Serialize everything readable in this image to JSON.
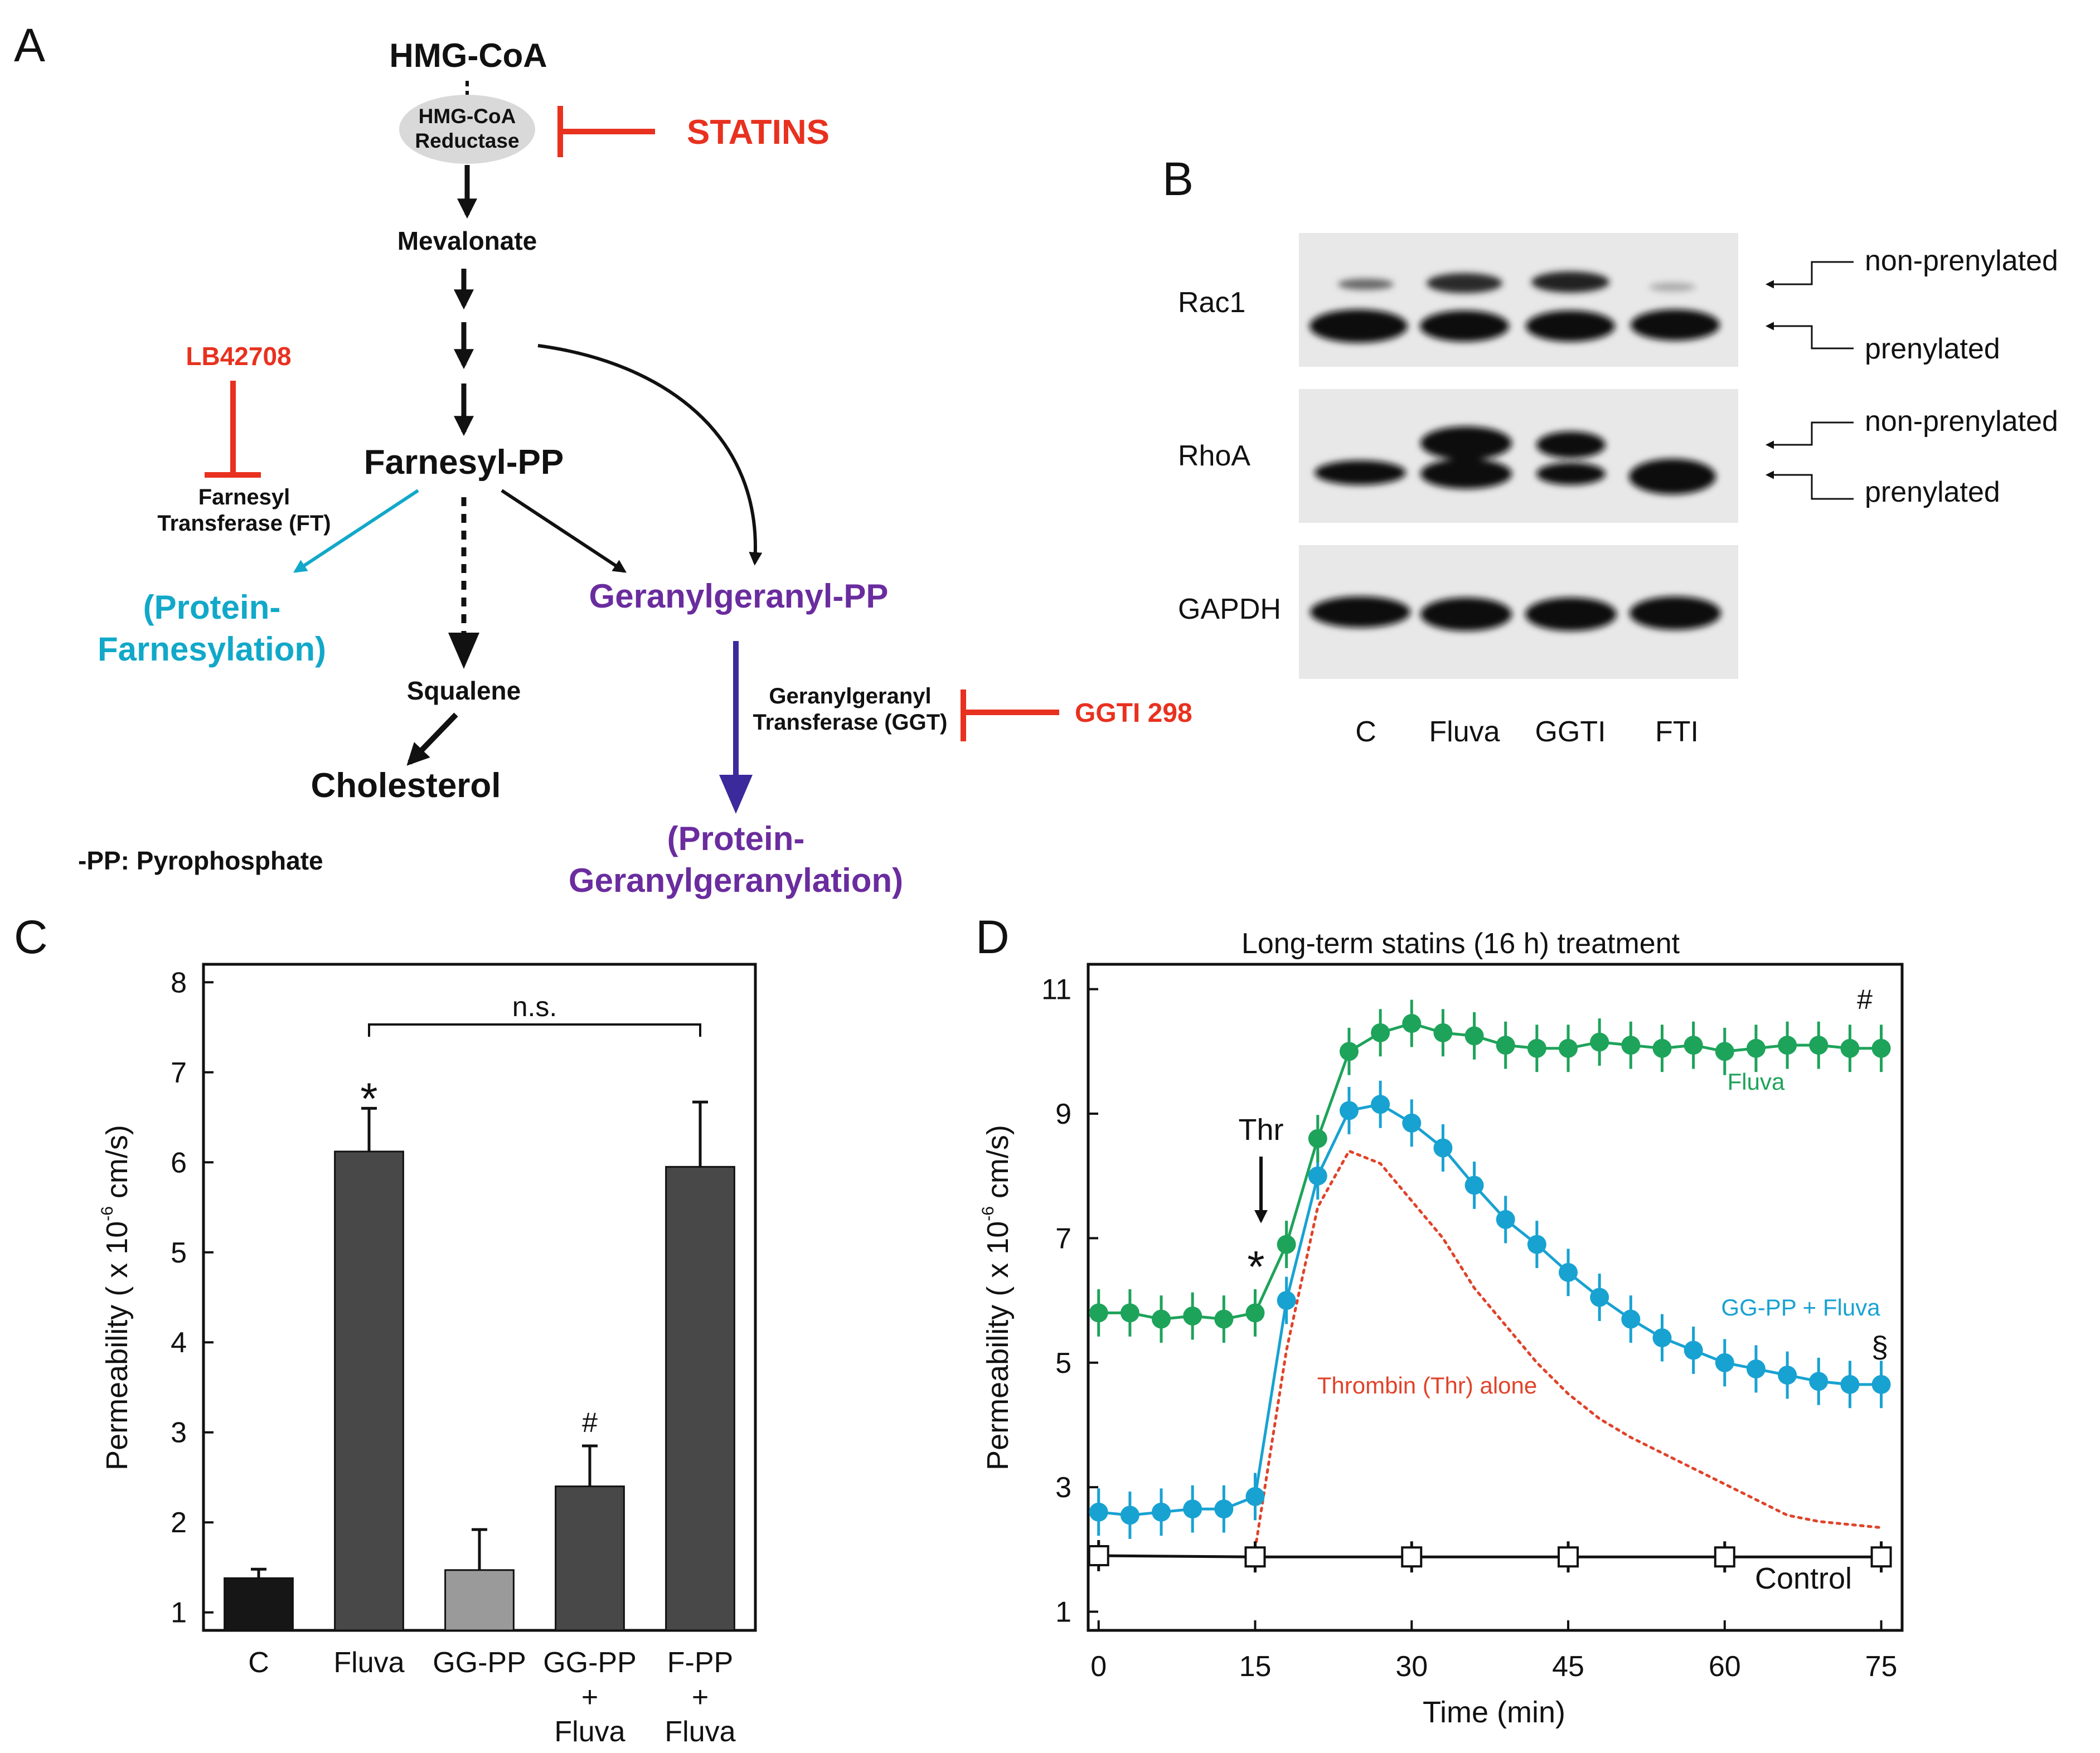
{
  "panels": {
    "a": {
      "letter": "A",
      "hmg_coa": "HMG-CoA",
      "reductase_line1": "HMG-CoA",
      "reductase_line2": "Reductase",
      "statins": "STATINS",
      "mevalonate": "Mevalonate",
      "lb42708": "LB42708",
      "ft_line1": "Farnesyl",
      "ft_line2": "Transferase (FT)",
      "farnesyl_pp": "Farnesyl-PP",
      "protein_farnesylation_line1": "(Protein-",
      "protein_farnesylation_line2": "Farnesylation)",
      "geranylgeranyl_pp": "Geranylgeranyl-PP",
      "squalene": "Squalene",
      "cholesterol": "Cholesterol",
      "ggt_line1": "Geranylgeranyl",
      "ggt_line2": "Transferase (GGT)",
      "ggti298": "GGTI 298",
      "protein_gg_line1": "(Protein-",
      "protein_gg_line2": "Geranylgeranylation)",
      "footnote": "-PP: Pyrophosphate",
      "colors": {
        "red": "#e8311f",
        "cyan": "#11a8c9",
        "purple": "#6a2c9e",
        "indigo": "#3b2a9c"
      }
    },
    "b": {
      "letter": "B",
      "rows": [
        "Rac1",
        "RhoA",
        "GAPDH"
      ],
      "lanes": [
        "C",
        "Fluva",
        "GGTI",
        "FTI"
      ],
      "rac1_labels": [
        "non-prenylated",
        "prenylated"
      ],
      "rhoa_labels": [
        "non-prenylated",
        "prenylated"
      ]
    },
    "c": {
      "letter": "C",
      "ylabel_prefix": "Permeability ( x 10",
      "ylabel_exp": "-6",
      "ylabel_suffix": "cm/s)",
      "ns": "n.s.",
      "star": "*",
      "hash": "#",
      "xlabels": [
        [
          "C"
        ],
        [
          "Fluva"
        ],
        [
          "GG-PP"
        ],
        [
          "GG-PP",
          "+",
          "Fluva"
        ],
        [
          "F-PP",
          "+",
          "Fluva"
        ]
      ]
    },
    "d": {
      "letter": "D",
      "title": "Long-term statins (16 h) treatment",
      "ylabel_prefix": "Permeability ( x 10",
      "ylabel_exp": "-6",
      "ylabel_suffix": "cm/s)",
      "xlabel": "Time (min)",
      "thr": "Thr",
      "star": "*",
      "hash": "#",
      "section": "§",
      "fluva_label": "Fluva",
      "ggpp_label": "GG-PP + Fluva",
      "thrombin_label": "Thrombin (Thr) alone",
      "control_label": "Control"
    }
  },
  "chart_data": [
    {
      "type": "bar",
      "panel": "C",
      "categories": [
        "C",
        "Fluva",
        "GG-PP",
        "GG-PP + Fluva",
        "F-PP + Fluva"
      ],
      "values": [
        1.38,
        6.12,
        1.47,
        2.4,
        5.95
      ],
      "errors": [
        0.1,
        0.48,
        0.45,
        0.45,
        0.72
      ],
      "colors": [
        "#161616",
        "#484848",
        "#9a9a9a",
        "#484848",
        "#484848"
      ],
      "ylim": [
        0.8,
        8.2
      ],
      "yticks": [
        1,
        2,
        3,
        4,
        5,
        6,
        7,
        8
      ],
      "ylabel": "Permeability ( x 10 -6 cm/s)",
      "annotations": [
        {
          "text": "*",
          "category": "Fluva"
        },
        {
          "text": "#",
          "category": "GG-PP + Fluva"
        },
        {
          "text": "n.s.",
          "between": [
            "Fluva",
            "F-PP + Fluva"
          ]
        }
      ]
    },
    {
      "type": "line",
      "panel": "D",
      "title": "Long-term statins (16 h) treatment",
      "xlabel": "Time (min)",
      "ylabel": "Permeability ( x 10 -6 cm/s)",
      "xlim": [
        -1,
        77
      ],
      "ylim": [
        0.7,
        11.4
      ],
      "xticks": [
        0,
        15,
        30,
        45,
        60,
        75
      ],
      "yticks": [
        1,
        3,
        5,
        7,
        9,
        11
      ],
      "series": [
        {
          "name": "Fluva",
          "color": "#1ea35a",
          "marker": "circle",
          "x": [
            0,
            3,
            6,
            9,
            12,
            15,
            18,
            21,
            24,
            27,
            30,
            33,
            36,
            39,
            42,
            45,
            48,
            51,
            54,
            57,
            60,
            63,
            66,
            69,
            72,
            75
          ],
          "y": [
            5.8,
            5.8,
            5.7,
            5.75,
            5.7,
            5.8,
            6.9,
            8.6,
            10.0,
            10.3,
            10.45,
            10.3,
            10.25,
            10.1,
            10.05,
            10.05,
            10.15,
            10.1,
            10.05,
            10.1,
            10.0,
            10.05,
            10.1,
            10.1,
            10.05,
            10.05
          ],
          "error": 0.38
        },
        {
          "name": "GG-PP + Fluva",
          "color": "#18a2d2",
          "marker": "circle",
          "x": [
            0,
            3,
            6,
            9,
            12,
            15,
            18,
            21,
            24,
            27,
            30,
            33,
            36,
            39,
            42,
            45,
            48,
            51,
            54,
            57,
            60,
            63,
            66,
            69,
            72,
            75
          ],
          "y": [
            2.6,
            2.55,
            2.6,
            2.65,
            2.65,
            2.85,
            6.0,
            8.0,
            9.05,
            9.15,
            8.85,
            8.45,
            7.85,
            7.3,
            6.9,
            6.45,
            6.05,
            5.7,
            5.4,
            5.2,
            5.0,
            4.9,
            4.8,
            4.7,
            4.65,
            4.65
          ],
          "error": 0.38
        },
        {
          "name": "Thrombin (Thr) alone",
          "color": "#e0432a",
          "style": "dotted",
          "x": [
            15,
            18,
            21,
            24,
            27,
            30,
            33,
            36,
            39,
            42,
            45,
            48,
            51,
            54,
            57,
            60,
            63,
            66,
            69,
            72,
            75
          ],
          "y": [
            2.0,
            5.2,
            7.5,
            8.4,
            8.2,
            7.6,
            7.0,
            6.2,
            5.6,
            5.0,
            4.5,
            4.1,
            3.8,
            3.55,
            3.3,
            3.05,
            2.8,
            2.55,
            2.45,
            2.4,
            2.35
          ]
        },
        {
          "name": "Control",
          "color": "#111111",
          "marker": "open-square",
          "x": [
            0,
            15,
            30,
            45,
            60,
            75
          ],
          "y": [
            1.9,
            1.88,
            1.88,
            1.88,
            1.88,
            1.88
          ],
          "error": 0.25
        }
      ],
      "annotations": [
        {
          "text": "Thr",
          "x": 15,
          "arrow": true
        },
        {
          "text": "*",
          "x": 15
        },
        {
          "text": "#",
          "series": "Fluva"
        },
        {
          "text": "§",
          "series": "GG-PP + Fluva"
        }
      ]
    }
  ]
}
